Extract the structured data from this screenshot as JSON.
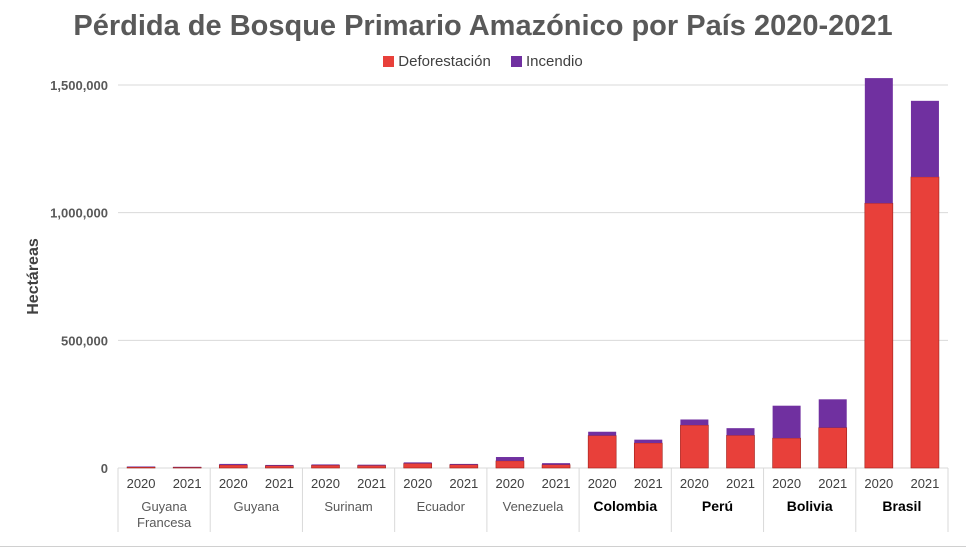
{
  "chart_data": {
    "type": "bar",
    "stacked": true,
    "title": "Pérdida de Bosque Primario Amazónico por País 2020-2021",
    "xlabel": "",
    "ylabel": "Hectáreas",
    "ylim": [
      0,
      1500000
    ],
    "yticks": [
      {
        "value": 0,
        "label": "0"
      },
      {
        "value": 500000,
        "label": "500,000"
      },
      {
        "value": 1000000,
        "label": "1,000,000"
      },
      {
        "value": 1500000,
        "label": "1,500,000"
      }
    ],
    "grid": true,
    "legend_position": "top",
    "groups": [
      {
        "label": "Guyana\nFrancesa",
        "bold": false
      },
      {
        "label": "Guyana",
        "bold": false
      },
      {
        "label": "Surinam",
        "bold": false
      },
      {
        "label": "Ecuador",
        "bold": false
      },
      {
        "label": "Venezuela",
        "bold": false
      },
      {
        "label": "Colombia",
        "bold": true
      },
      {
        "label": "Perú",
        "bold": true
      },
      {
        "label": "Bolivia",
        "bold": true
      },
      {
        "label": "Brasil",
        "bold": true
      }
    ],
    "years": [
      "2020",
      "2021"
    ],
    "series": [
      {
        "name": "Deforestación",
        "color": "#e8403a",
        "values": [
          4000,
          3000,
          12000,
          9000,
          11000,
          10000,
          18000,
          13000,
          28000,
          13000,
          127000,
          98000,
          168000,
          128000,
          117000,
          158000,
          1037000,
          1140000
        ]
      },
      {
        "name": "Incendio",
        "color": "#7030a0",
        "values": [
          2000,
          1500,
          4000,
          3000,
          3000,
          3000,
          4000,
          3000,
          15000,
          6000,
          15000,
          13000,
          22000,
          28000,
          127000,
          111000,
          490000,
          298000
        ]
      }
    ]
  }
}
